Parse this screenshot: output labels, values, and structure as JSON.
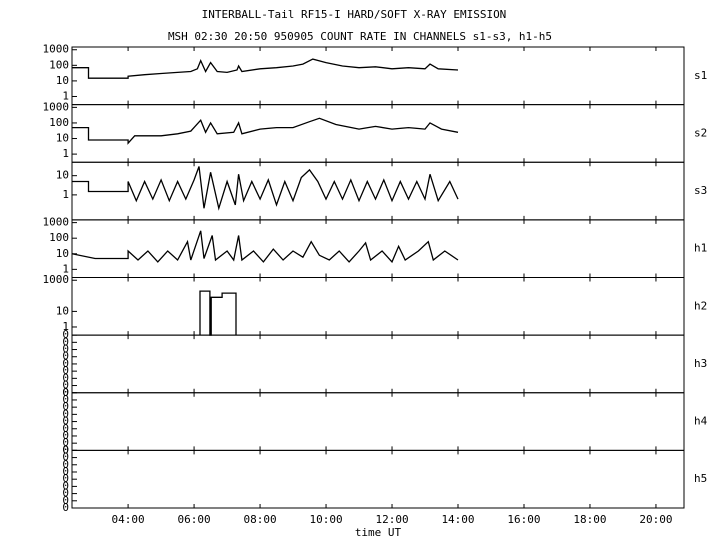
{
  "chart_data": {
    "type": "line",
    "title": "INTERBALL-Tail RF15-I HARD/SOFT X-RAY EMISSION",
    "subtitle": "MSH 02:30 20:50 950905  COUNT RATE IN CHANNELS s1-s3, h1-h5",
    "xlabel": "time UT",
    "color": "#000000",
    "xlim": [
      2.3,
      20.85
    ],
    "xticks": [
      {
        "value": 4,
        "label": "04:00"
      },
      {
        "value": 6,
        "label": "06:00"
      },
      {
        "value": 8,
        "label": "08:00"
      },
      {
        "value": 10,
        "label": "10:00"
      },
      {
        "value": 12,
        "label": "12:00"
      },
      {
        "value": 14,
        "label": "14:00"
      },
      {
        "value": 16,
        "label": "16:00"
      },
      {
        "value": 18,
        "label": "18:00"
      },
      {
        "value": 20,
        "label": "20:00"
      }
    ],
    "panels": [
      {
        "name": "s1",
        "log": true,
        "ylim": [
          0.3,
          1500
        ],
        "yticks": [
          1000,
          100,
          10,
          1
        ],
        "x": [
          2.3,
          2.8,
          2.8,
          4.0,
          4.0,
          4.5,
          5.0,
          5.5,
          5.9,
          6.1,
          6.2,
          6.35,
          6.5,
          6.7,
          7.0,
          7.3,
          7.35,
          7.45,
          8.0,
          8.5,
          9.0,
          9.3,
          9.6,
          10.0,
          10.5,
          11.0,
          11.5,
          12.0,
          12.5,
          13.0,
          13.15,
          13.4,
          14.0
        ],
        "values": [
          70,
          70,
          15,
          15,
          20,
          25,
          30,
          35,
          40,
          60,
          200,
          40,
          150,
          40,
          35,
          50,
          90,
          40,
          60,
          70,
          90,
          120,
          250,
          150,
          90,
          70,
          80,
          60,
          70,
          60,
          120,
          60,
          50
        ]
      },
      {
        "name": "s2",
        "log": true,
        "ylim": [
          0.3,
          1500
        ],
        "yticks": [
          1000,
          100,
          10,
          1
        ],
        "x": [
          2.3,
          2.8,
          2.8,
          4.0,
          4.0,
          4.2,
          5.0,
          5.5,
          5.9,
          6.2,
          6.35,
          6.5,
          6.7,
          7.2,
          7.35,
          7.45,
          8.0,
          8.5,
          9.0,
          9.5,
          9.8,
          10.3,
          11.0,
          11.5,
          12.0,
          12.5,
          13.0,
          13.15,
          13.5,
          14.0
        ],
        "values": [
          50,
          50,
          8,
          8,
          5,
          15,
          15,
          20,
          30,
          150,
          25,
          100,
          20,
          25,
          100,
          20,
          40,
          50,
          50,
          120,
          200,
          80,
          40,
          60,
          40,
          50,
          40,
          100,
          40,
          25
        ]
      },
      {
        "name": "s3",
        "log": true,
        "ylim": [
          0.05,
          50
        ],
        "yticks": [
          10,
          1
        ],
        "x": [
          2.3,
          2.8,
          2.8,
          4.0,
          4.0,
          4.25,
          4.5,
          4.75,
          5.0,
          5.25,
          5.5,
          5.75,
          6.0,
          6.15,
          6.3,
          6.5,
          6.75,
          7.0,
          7.25,
          7.35,
          7.5,
          7.75,
          8.0,
          8.25,
          8.5,
          8.75,
          9.0,
          9.25,
          9.5,
          9.75,
          10.0,
          10.25,
          10.5,
          10.75,
          11.0,
          11.25,
          11.5,
          11.75,
          12.0,
          12.25,
          12.5,
          12.75,
          13.0,
          13.15,
          13.4,
          13.75,
          14.0
        ],
        "values": [
          5,
          5,
          1.5,
          1.5,
          5,
          0.5,
          5,
          0.6,
          6,
          0.5,
          5,
          0.6,
          6,
          30,
          0.2,
          15,
          0.2,
          5,
          0.3,
          12,
          0.5,
          5,
          0.6,
          6,
          0.3,
          5,
          0.5,
          8,
          20,
          5,
          0.6,
          5,
          0.6,
          6,
          0.5,
          5,
          0.6,
          6,
          0.5,
          5,
          0.6,
          5,
          0.6,
          12,
          0.5,
          5,
          0.6
        ]
      },
      {
        "name": "h1",
        "log": true,
        "ylim": [
          0.3,
          1500
        ],
        "yticks": [
          1000,
          100,
          10,
          1
        ],
        "x": [
          2.3,
          3.0,
          4.0,
          4.0,
          4.3,
          4.6,
          4.9,
          5.2,
          5.5,
          5.8,
          5.9,
          6.2,
          6.3,
          6.55,
          6.65,
          7.0,
          7.2,
          7.35,
          7.45,
          7.8,
          8.1,
          8.4,
          8.7,
          9.0,
          9.3,
          9.55,
          9.8,
          10.1,
          10.4,
          10.7,
          11.0,
          11.2,
          11.35,
          11.7,
          12.0,
          12.2,
          12.4,
          12.8,
          13.1,
          13.25,
          13.6,
          14.0
        ],
        "values": [
          10,
          5,
          5,
          15,
          4,
          15,
          3,
          15,
          4,
          60,
          4,
          300,
          5,
          150,
          4,
          15,
          4,
          150,
          4,
          15,
          3,
          20,
          4,
          15,
          6,
          60,
          8,
          4,
          15,
          3,
          15,
          50,
          4,
          15,
          3,
          30,
          4,
          15,
          60,
          4,
          15,
          4
        ]
      },
      {
        "name": "h2",
        "log": true,
        "ylim": [
          0.3,
          1500
        ],
        "yticks": [
          1000,
          10,
          1
        ],
        "x": [
          6.18,
          6.18,
          6.48,
          6.48,
          6.52,
          6.52,
          6.85,
          6.85,
          7.27,
          7.27
        ],
        "values": [
          0.3,
          200,
          200,
          0.3,
          0.3,
          80,
          80,
          150,
          150,
          0.3
        ]
      },
      {
        "name": "h3",
        "log": false,
        "ylim": [
          0,
          0.4
        ],
        "yticks": [
          {
            "value": 0,
            "label": "0"
          },
          {
            "value": 0.05,
            "label": "0"
          },
          {
            "value": 0.1,
            "label": "0"
          },
          {
            "value": 0.15,
            "label": "0"
          },
          {
            "value": 0.2,
            "label": "0"
          },
          {
            "value": 0.25,
            "label": "0"
          },
          {
            "value": 0.3,
            "label": "0"
          },
          {
            "value": 0.35,
            "label": "0"
          },
          {
            "value": 0.4,
            "label": "0"
          }
        ],
        "x": [],
        "values": []
      },
      {
        "name": "h4",
        "log": false,
        "ylim": [
          0,
          0.4
        ],
        "yticks": [
          {
            "value": 0,
            "label": "0"
          },
          {
            "value": 0.05,
            "label": "0"
          },
          {
            "value": 0.1,
            "label": "0"
          },
          {
            "value": 0.15,
            "label": "0"
          },
          {
            "value": 0.2,
            "label": "0"
          },
          {
            "value": 0.25,
            "label": "0"
          },
          {
            "value": 0.3,
            "label": "0"
          },
          {
            "value": 0.35,
            "label": "0"
          },
          {
            "value": 0.4,
            "label": "0"
          }
        ],
        "x": [],
        "values": []
      },
      {
        "name": "h5",
        "log": false,
        "ylim": [
          0,
          0.4
        ],
        "yticks": [
          {
            "value": 0,
            "label": "0"
          },
          {
            "value": 0.05,
            "label": "0"
          },
          {
            "value": 0.1,
            "label": "0"
          },
          {
            "value": 0.15,
            "label": "0"
          },
          {
            "value": 0.2,
            "label": "0"
          },
          {
            "value": 0.25,
            "label": "0"
          },
          {
            "value": 0.3,
            "label": "0"
          },
          {
            "value": 0.35,
            "label": "0"
          },
          {
            "value": 0.4,
            "label": "0"
          }
        ],
        "x": [],
        "values": []
      }
    ]
  }
}
